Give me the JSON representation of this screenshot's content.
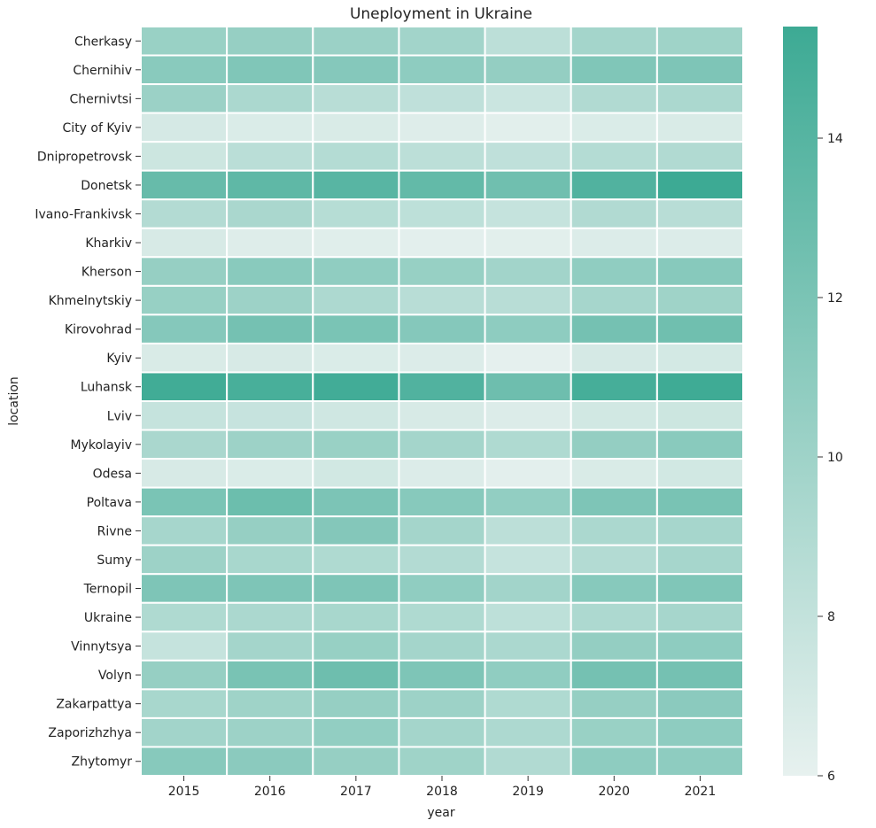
{
  "chart_data": {
    "type": "heatmap",
    "title": "Uneployment in Ukraine",
    "xlabel": "year",
    "ylabel": "location",
    "x": [
      "2015",
      "2016",
      "2017",
      "2018",
      "2019",
      "2020",
      "2021"
    ],
    "y": [
      "Cherkasy",
      "Chernihiv",
      "Chernivtsi",
      "City of Kyiv",
      "Dnipropetrovsk",
      "Donetsk",
      "Ivano-Frankivsk",
      "Kharkiv",
      "Kherson",
      "Khmelnytskiy",
      "Kirovohrad",
      "Kyiv",
      "Luhansk",
      "Lviv",
      "Mykolayiv",
      "Odesa",
      "Poltava",
      "Rivne",
      "Sumy",
      "Ternopil",
      "Ukraine",
      "Vinnytsya",
      "Volyn",
      "Zakarpattya",
      "Zaporizhzhya",
      "Zhytomyr"
    ],
    "values": [
      [
        10.3,
        10.5,
        10.2,
        9.8,
        8.4,
        9.7,
        10.0
      ],
      [
        11.2,
        11.7,
        11.4,
        10.9,
        10.6,
        11.7,
        11.8
      ],
      [
        10.2,
        9.3,
        8.6,
        8.2,
        7.6,
        9.0,
        9.3
      ],
      [
        7.0,
        6.7,
        6.8,
        6.5,
        6.3,
        6.7,
        6.8
      ],
      [
        7.5,
        8.5,
        8.8,
        8.4,
        8.2,
        8.8,
        9.0
      ],
      [
        13.1,
        13.5,
        13.9,
        13.3,
        12.6,
        14.3,
        15.4
      ],
      [
        8.9,
        9.4,
        8.7,
        8.3,
        7.9,
        9.0,
        8.6
      ],
      [
        6.9,
        6.5,
        6.4,
        6.2,
        6.3,
        6.6,
        6.6
      ],
      [
        10.5,
        11.2,
        10.8,
        10.4,
        9.8,
        10.8,
        11.3
      ],
      [
        10.4,
        10.1,
        9.2,
        8.6,
        8.6,
        9.6,
        10.0
      ],
      [
        11.4,
        12.3,
        12.0,
        11.4,
        10.9,
        12.3,
        12.6
      ],
      [
        6.8,
        6.9,
        6.7,
        6.6,
        6.1,
        7.0,
        7.1
      ],
      [
        15.2,
        14.8,
        15.1,
        14.3,
        12.7,
        14.9,
        15.3
      ],
      [
        7.9,
        7.8,
        7.3,
        6.9,
        6.6,
        7.2,
        7.5
      ],
      [
        9.4,
        10.1,
        10.3,
        9.7,
        9.1,
        10.6,
        11.2
      ],
      [
        6.9,
        6.7,
        7.2,
        6.6,
        6.2,
        6.8,
        7.2
      ],
      [
        12.0,
        12.8,
        11.9,
        11.3,
        10.7,
        11.8,
        12.1
      ],
      [
        9.6,
        10.5,
        11.5,
        9.7,
        8.4,
        9.3,
        9.6
      ],
      [
        10.1,
        9.5,
        9.1,
        8.9,
        7.9,
        8.9,
        9.6
      ],
      [
        11.8,
        11.8,
        11.8,
        10.8,
        9.8,
        11.3,
        11.7
      ],
      [
        9.1,
        9.3,
        9.5,
        9.1,
        8.3,
        9.2,
        9.6
      ],
      [
        7.9,
        9.7,
        10.4,
        9.7,
        9.3,
        10.6,
        10.9
      ],
      [
        10.5,
        12.1,
        12.7,
        11.8,
        10.8,
        12.3,
        12.3
      ],
      [
        9.5,
        10.0,
        10.5,
        10.1,
        9.1,
        10.5,
        11.1
      ],
      [
        9.8,
        10.1,
        10.7,
        9.7,
        9.2,
        10.3,
        10.9
      ],
      [
        11.3,
        11.1,
        10.5,
        10.0,
        9.0,
        10.9,
        10.9
      ]
    ],
    "colorbar": {
      "min": 6,
      "max": 15.4,
      "ticks": [
        6,
        8,
        10,
        12,
        14
      ]
    },
    "colors": {
      "low": "#e7f1ef",
      "high": "#3daa94"
    },
    "grid": false
  }
}
